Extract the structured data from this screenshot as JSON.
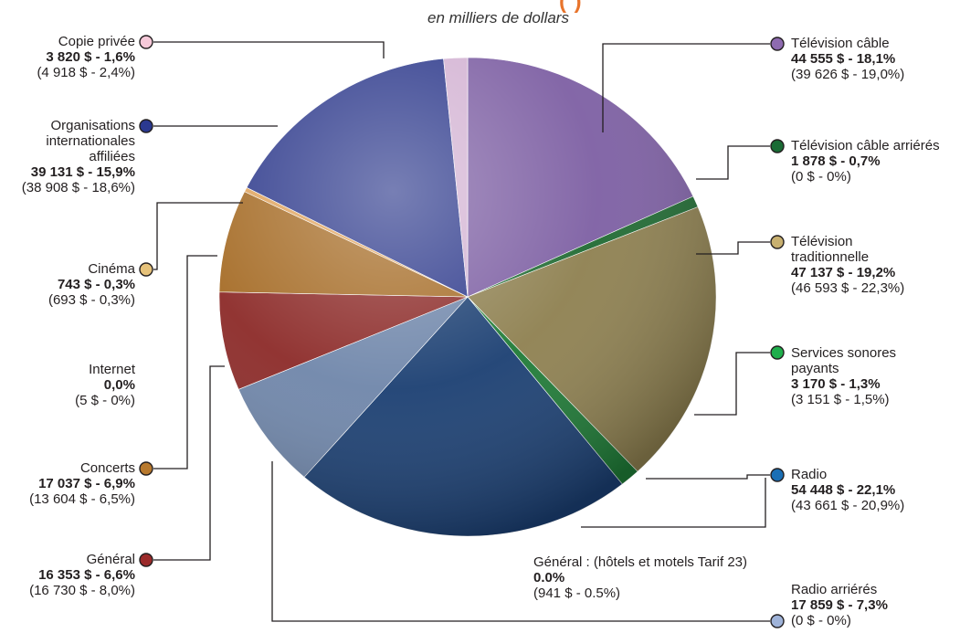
{
  "header": {
    "banner_fragment": "(   )",
    "subtitle": "en milliers de dollars"
  },
  "chart_data": {
    "type": "pie",
    "title": "",
    "subtitle": "en milliers de dollars",
    "unit": "$ (milliers)",
    "slices": [
      {
        "key": "tv-cable",
        "name": "Télévision câble",
        "value": 44555,
        "percent": 18.1,
        "current": "44 555 $ - 18,1%",
        "previous": "(39  626 $ - 19,0%)",
        "color": "#7d5fa3"
      },
      {
        "key": "tv-cable-arrieres",
        "name": "Télévision câble arriérés",
        "value": 1878,
        "percent": 0.7,
        "current": "1 878 $ - 0,7%",
        "previous": "(0 $ -  0%)",
        "color": "#1f6a32"
      },
      {
        "key": "tv-traditionnelle",
        "name": "Télévision traditionnelle",
        "value": 47137,
        "percent": 19.2,
        "current": "47 137 $ - 19,2%",
        "previous": "(46 593 $ - 22,3%)",
        "color": "#8e8050"
      },
      {
        "key": "services-sonores",
        "name": "Services sonores payants",
        "value": 3170,
        "percent": 1.3,
        "current": "3 170 $ - 1,3%",
        "previous": "(3 151 $ - 1,5%)",
        "color": "#1e7a36"
      },
      {
        "key": "radio",
        "name": "Radio",
        "value": 54448,
        "percent": 22.1,
        "current": "54 448 $ - 22,1%",
        "previous": "(43 661 $ - 20,9%)",
        "color": "#1b3f72"
      },
      {
        "key": "general-hotels",
        "name": "Général : (hôtels et motels Tarif 23)",
        "value": 0,
        "percent": 0.0,
        "current": "0.0%",
        "previous": "(941 $ - 0.5%)",
        "color": "#6f86aa"
      },
      {
        "key": "radio-arrieres",
        "name": "Radio arriérés",
        "value": 17859,
        "percent": 7.3,
        "current": "17 859 $ - 7,3%",
        "previous": "(0 $ - 0%)",
        "color": "#6f86aa"
      },
      {
        "key": "general",
        "name": "Général",
        "value": 16353,
        "percent": 6.6,
        "current": "16 353 $ - 6,6%",
        "previous": "(16 730 $ - 8,0%)",
        "color": "#8c2a28"
      },
      {
        "key": "concerts",
        "name": "Concerts",
        "value": 17037,
        "percent": 6.9,
        "current": "17 037 $ - 6,9%",
        "previous": "(13 604 $ - 6,5%)",
        "color": "#a56b25"
      },
      {
        "key": "internet",
        "name": "Internet",
        "value": 0,
        "percent": 0.0,
        "current": "0,0%",
        "previous": "(5 $ - 0%)",
        "color": "#c69a4a"
      },
      {
        "key": "cinema",
        "name": "Cinéma",
        "value": 743,
        "percent": 0.3,
        "current": "743 $ - 0,3%",
        "previous": "(693 $ - 0,3%)",
        "color": "#e0a35c"
      },
      {
        "key": "organisations",
        "name": "Organisations internationales affiliées",
        "value": 39131,
        "percent": 15.9,
        "current": "39 131 $ - 15,9%",
        "previous": "(38 908 $ - 18,6%)",
        "color": "#2e3a8c"
      },
      {
        "key": "copie-privee",
        "name": "Copie privée",
        "value": 3820,
        "percent": 1.6,
        "current": "3 820 $ - 1,6%",
        "previous": "(4 918 $ - 2,4%)",
        "color": "#d3b3d3"
      }
    ]
  },
  "labels": {
    "tv_cable": {
      "name": "Télévision câble",
      "cur": "44 555 $ - 18,1%",
      "prev": "(39  626 $ - 19,0%)",
      "dot": "#8e6bb0"
    },
    "tv_cable_arr": {
      "name": "Télévision câble arriérés",
      "cur": "1 878 $ - 0,7%",
      "prev": "(0 $ -  0%)",
      "dot": "#1a6b35"
    },
    "tv_trad": {
      "name1": "Télévision",
      "name2": "traditionnelle",
      "cur": "47 137 $ - 19,2%",
      "prev": "(46 593 $ - 22,3%)",
      "dot": "#c8b070"
    },
    "services": {
      "name1": "Services sonores",
      "name2": "payants",
      "cur": "3 170 $ - 1,3%",
      "prev": "(3 151 $ - 1,5%)",
      "dot": "#1fae4c"
    },
    "radio": {
      "name": "Radio",
      "cur": "54 448 $ - 22,1%",
      "prev": "(43 661 $ - 20,9%)",
      "dot": "#1a6fb5"
    },
    "general_hotels": {
      "name": "Général : (hôtels et motels Tarif 23)",
      "cur": "0.0%",
      "prev": "(941 $ - 0.5%)"
    },
    "radio_arr": {
      "name": "Radio arriérés",
      "cur": "17 859 $ - 7,3%",
      "prev": "(0 $ - 0%)",
      "dot": "#9fb3d9"
    },
    "copie": {
      "name": "Copie privée",
      "cur": "3 820 $ - 1,6%",
      "prev": "(4 918 $ - 2,4%)",
      "dot": "#f6c9d9"
    },
    "orgs": {
      "name1": "Organisations",
      "name2": "internationales",
      "name3": "affiliées",
      "cur": "39 131 $ - 15,9%",
      "prev": "(38 908 $ - 18,6%)",
      "dot": "#2b3990"
    },
    "cinema": {
      "name": "Cinéma",
      "cur": "743 $ - 0,3%",
      "prev": "(693 $ - 0,3%)",
      "dot": "#e6c27a"
    },
    "internet": {
      "name": "Internet",
      "cur": "0,0%",
      "prev": "(5 $ - 0%)"
    },
    "concerts": {
      "name": "Concerts",
      "cur": "17 037 $ - 6,9%",
      "prev": "(13 604 $ - 6,5%)",
      "dot": "#b8792d"
    },
    "general": {
      "name": "Général",
      "cur": "16 353 $ - 6,6%",
      "prev": "(16 730 $ - 8,0%)",
      "dot": "#9b2a2a"
    }
  }
}
